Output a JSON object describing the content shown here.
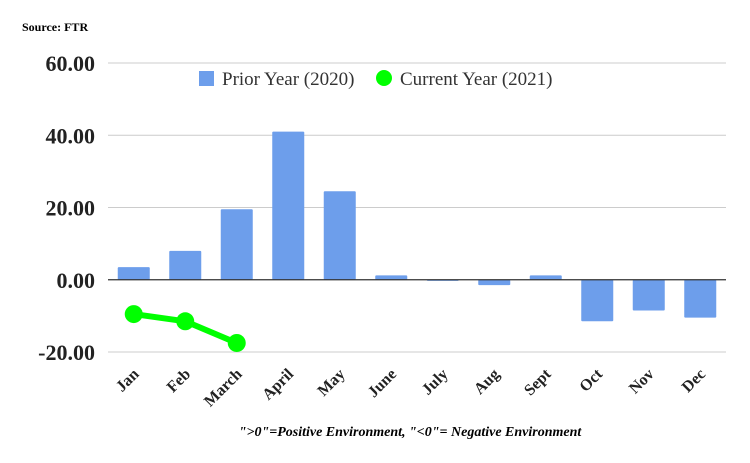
{
  "source_label": "Source: FTR",
  "footnote": "\">0\"=Positive Environment, \"<0\"= Negative Environment",
  "chart_data": {
    "type": "bar",
    "categories": [
      "Jan",
      "Feb",
      "March",
      "April",
      "May",
      "June",
      "July",
      "Aug",
      "Sept",
      "Oct",
      "Nov",
      "Dec"
    ],
    "series": [
      {
        "name": "Prior Year (2020)",
        "type": "bar",
        "color": "#6d9eeb",
        "values": [
          3.5,
          8.0,
          19.5,
          41.0,
          24.5,
          1.2,
          -0.3,
          -1.5,
          1.2,
          -11.5,
          -8.5,
          -10.5
        ]
      },
      {
        "name": "Current Year (2021)",
        "type": "line",
        "color": "#00ff00",
        "values": [
          -9.5,
          -11.5,
          -17.5,
          null,
          null,
          null,
          null,
          null,
          null,
          null,
          null,
          null
        ]
      }
    ],
    "ylim": [
      -20,
      60
    ],
    "yticks": [
      "-20.00",
      "0.00",
      "20.00",
      "40.00",
      "60.00"
    ],
    "ytick_values": [
      -20,
      0,
      20,
      40,
      60
    ],
    "grid": true,
    "legend": "top"
  }
}
